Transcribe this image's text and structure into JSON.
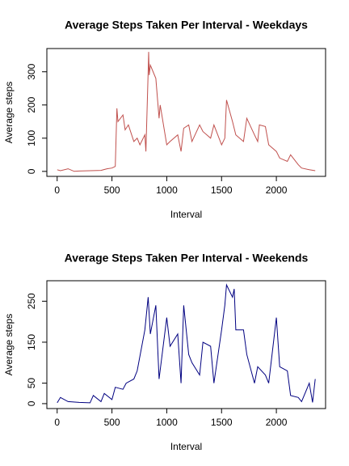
{
  "chart_data": [
    {
      "type": "line",
      "title": "Average Steps Taken Per Interval - Weekdays",
      "xlabel": "Interval",
      "ylabel": "Average steps",
      "color": "#c0504d",
      "x": [
        0,
        30,
        100,
        155,
        200,
        300,
        400,
        455,
        500,
        530,
        545,
        555,
        600,
        620,
        650,
        700,
        730,
        755,
        800,
        810,
        830,
        835,
        840,
        850,
        900,
        930,
        940,
        1000,
        1030,
        1100,
        1130,
        1155,
        1200,
        1230,
        1300,
        1330,
        1400,
        1430,
        1500,
        1530,
        1545,
        1600,
        1630,
        1700,
        1730,
        1800,
        1830,
        1845,
        1900,
        1930,
        2000,
        2030,
        2100,
        2130,
        2200,
        2230,
        2300,
        2355
      ],
      "values": [
        5,
        2,
        8,
        0,
        1,
        2,
        3,
        8,
        10,
        15,
        190,
        150,
        170,
        125,
        140,
        90,
        100,
        80,
        110,
        60,
        300,
        360,
        290,
        320,
        280,
        160,
        200,
        80,
        90,
        110,
        60,
        130,
        140,
        90,
        140,
        120,
        100,
        140,
        80,
        100,
        215,
        150,
        110,
        90,
        160,
        110,
        90,
        140,
        135,
        80,
        60,
        40,
        30,
        50,
        20,
        10,
        5,
        2
      ],
      "xlim": [
        -94,
        2449
      ],
      "ylim": [
        -15,
        370
      ],
      "xticks": [
        0,
        500,
        1000,
        1500,
        2000
      ],
      "yticks": [
        0,
        100,
        200,
        300
      ]
    },
    {
      "type": "line",
      "title": "Average Steps Taken Per Interval - Weekends",
      "xlabel": "Interval",
      "ylabel": "Average steps",
      "color": "#000080",
      "x": [
        0,
        30,
        100,
        200,
        300,
        330,
        400,
        430,
        500,
        530,
        600,
        630,
        700,
        730,
        800,
        830,
        850,
        900,
        930,
        1000,
        1030,
        1100,
        1130,
        1155,
        1200,
        1230,
        1300,
        1330,
        1400,
        1430,
        1500,
        1530,
        1545,
        1600,
        1615,
        1630,
        1700,
        1730,
        1800,
        1830,
        1900,
        1930,
        2000,
        2030,
        2100,
        2130,
        2200,
        2230,
        2300,
        2330,
        2355
      ],
      "values": [
        2,
        15,
        5,
        3,
        2,
        20,
        5,
        25,
        10,
        40,
        35,
        50,
        60,
        80,
        180,
        260,
        170,
        240,
        60,
        210,
        140,
        170,
        50,
        240,
        120,
        100,
        70,
        150,
        140,
        50,
        180,
        240,
        290,
        260,
        280,
        180,
        180,
        120,
        50,
        90,
        70,
        50,
        210,
        90,
        80,
        20,
        15,
        5,
        50,
        3,
        60
      ],
      "xlim": [
        -94,
        2449
      ],
      "ylim": [
        -12,
        300
      ],
      "xticks": [
        0,
        500,
        1000,
        1500,
        2000
      ],
      "yticks": [
        0,
        50,
        150,
        250
      ]
    }
  ]
}
